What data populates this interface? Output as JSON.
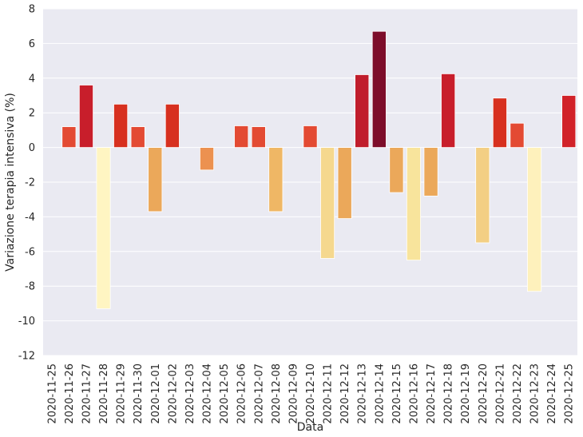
{
  "chart_data": {
    "type": "bar",
    "xlabel": "Data",
    "ylabel": "Variazione terapia intensiva (%)",
    "ylim": [
      -12,
      8
    ],
    "yticks": [
      8,
      6,
      4,
      2,
      0,
      -2,
      -4,
      -6,
      -8,
      -10,
      -12
    ],
    "grid": true,
    "background": "#eaeaf2",
    "colormap": "YlOrRd",
    "categories": [
      "2020-11-25",
      "2020-11-26",
      "2020-11-27",
      "2020-11-28",
      "2020-11-29",
      "2020-11-30",
      "2020-12-01",
      "2020-12-02",
      "2020-12-03",
      "2020-12-04",
      "2020-12-05",
      "2020-12-06",
      "2020-12-07",
      "2020-12-08",
      "2020-12-09",
      "2020-12-10",
      "2020-12-11",
      "2020-12-12",
      "2020-12-13",
      "2020-12-14",
      "2020-12-15",
      "2020-12-16",
      "2020-12-17",
      "2020-12-18",
      "2020-12-19",
      "2020-12-20",
      "2020-12-21",
      "2020-12-22",
      "2020-12-23",
      "2020-12-24",
      "2020-12-25"
    ],
    "values": [
      0,
      1.2,
      3.6,
      -9.3,
      2.5,
      1.2,
      -3.7,
      2.5,
      0,
      -1.3,
      0,
      1.25,
      1.2,
      -3.7,
      0,
      1.25,
      -6.4,
      -4.1,
      4.2,
      6.7,
      -2.6,
      -6.5,
      -2.8,
      4.25,
      0,
      -5.5,
      2.85,
      1.4,
      -8.3,
      0,
      3.0
    ],
    "colors": [
      "#e34a33",
      "#e34a33",
      "#c81e2b",
      "#fff5c2",
      "#d7301f",
      "#e34a33",
      "#eba85a",
      "#d7301f",
      "#e34a33",
      "#ec9150",
      "#e34a33",
      "#e34a33",
      "#e34a33",
      "#efb765",
      "#e34a33",
      "#e34a33",
      "#f5d88e",
      "#eba85a",
      "#c01d2c",
      "#7d0d2a",
      "#eba85a",
      "#f8e49c",
      "#eba85a",
      "#c81e2b",
      "#e34a33",
      "#f3cf84",
      "#d7301f",
      "#e34a33",
      "#fef1bc",
      "#e34a33",
      "#d12229"
    ]
  }
}
